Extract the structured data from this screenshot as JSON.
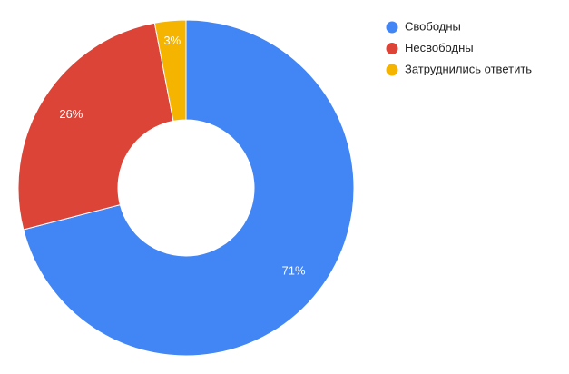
{
  "chart_data": {
    "type": "donut",
    "categories": [
      "Свободны",
      "Несвободны",
      "Затруднились ответить"
    ],
    "values": [
      71,
      26,
      3
    ],
    "value_labels": [
      "71%",
      "26%",
      "3%"
    ],
    "colors": [
      "#4285f4",
      "#db4437",
      "#f4b400"
    ],
    "legend": "right"
  }
}
